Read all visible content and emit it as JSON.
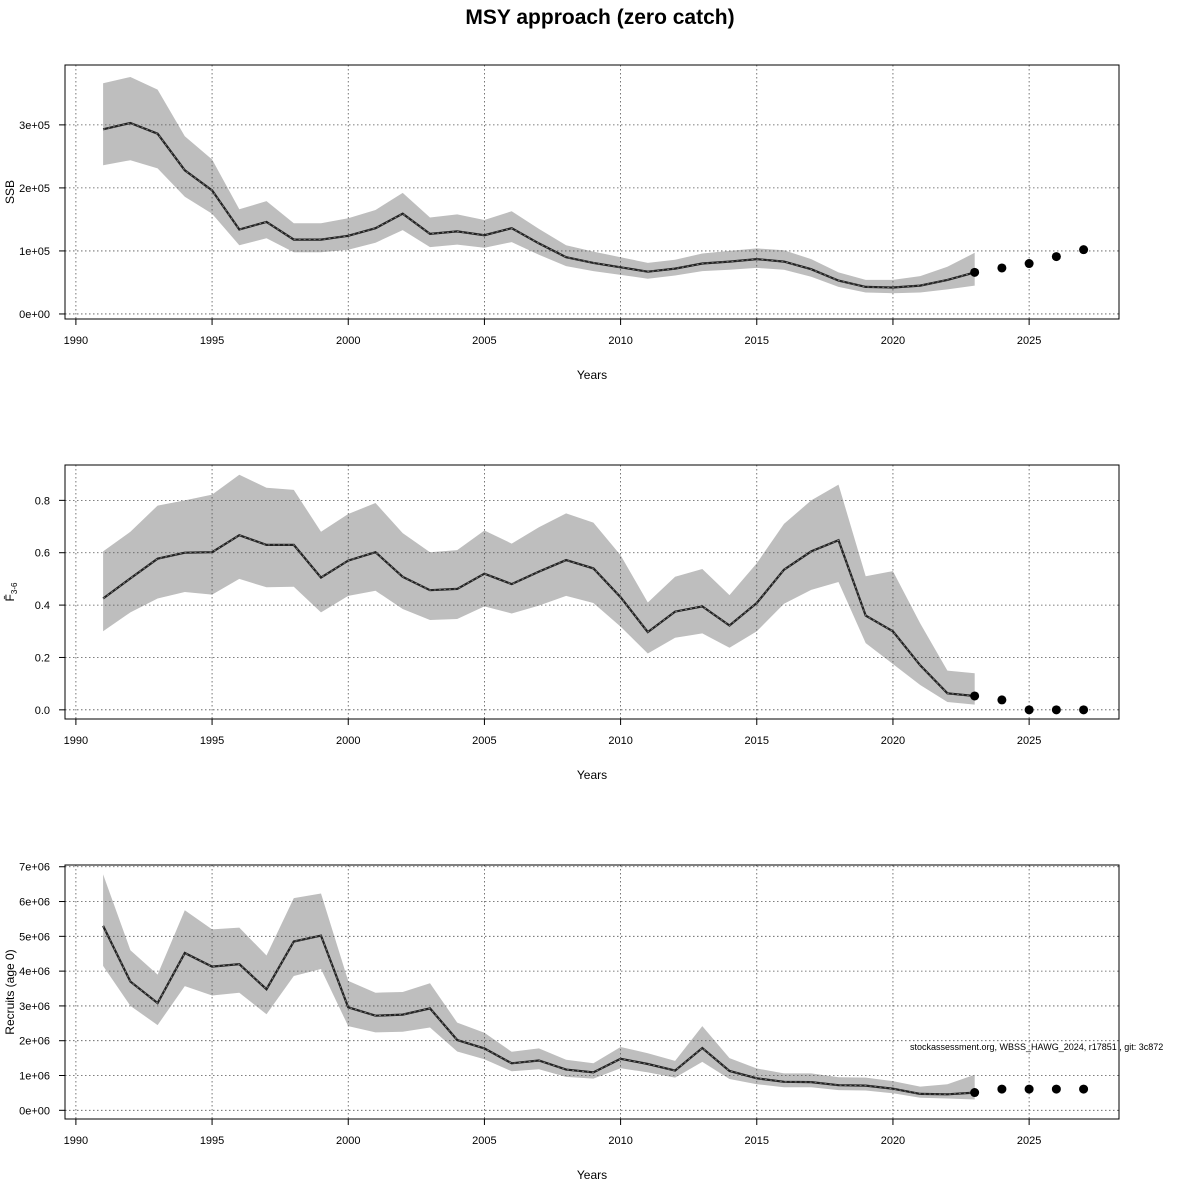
{
  "title": "MSY approach (zero catch)",
  "footer": "stockassessment.org, WBSS_HAWG_2024, r17851 , git: 3c872",
  "colors": {
    "band": "#bebebe",
    "line": "#222222",
    "point": "#000000",
    "grid": "#555555"
  },
  "chart_data": [
    {
      "type": "line",
      "ylabel": "SSB",
      "xlabel": "Years",
      "xlim": [
        1989.6,
        2028.3
      ],
      "ylim": [
        -8000,
        395000
      ],
      "xticks": [
        1990,
        1995,
        2000,
        2005,
        2010,
        2015,
        2020,
        2025
      ],
      "xtick_labels": [
        "1990",
        "1995",
        "2000",
        "2005",
        "2010",
        "2015",
        "2020",
        "2025"
      ],
      "yticks": [
        0,
        100000,
        200000,
        300000
      ],
      "ytick_labels": [
        "0e+00",
        "1e+05",
        "2e+05",
        "3e+05"
      ],
      "grid": true,
      "x": [
        1991,
        1992,
        1993,
        1994,
        1995,
        1996,
        1997,
        1998,
        1999,
        2000,
        2001,
        2002,
        2003,
        2004,
        2005,
        2006,
        2007,
        2008,
        2009,
        2010,
        2011,
        2012,
        2013,
        2014,
        2015,
        2016,
        2017,
        2018,
        2019,
        2020,
        2021,
        2022,
        2023
      ],
      "estimate": [
        293000,
        303000,
        286000,
        228000,
        196000,
        134000,
        146000,
        118000,
        118000,
        124000,
        136000,
        159000,
        127000,
        131000,
        125000,
        136000,
        112000,
        90000,
        81000,
        74000,
        67000,
        72000,
        80000,
        83000,
        87000,
        83000,
        71000,
        53000,
        43000,
        42000,
        45000,
        54000,
        66000
      ],
      "upper": [
        366000,
        376000,
        356000,
        282000,
        245000,
        166000,
        179000,
        144000,
        144000,
        152000,
        165000,
        192000,
        153000,
        158000,
        149000,
        163000,
        135000,
        109000,
        99000,
        90000,
        81000,
        86000,
        96000,
        100000,
        104000,
        101000,
        87000,
        66000,
        54000,
        54000,
        60000,
        75000,
        97000
      ],
      "lower": [
        236000,
        244000,
        231000,
        186000,
        159000,
        109000,
        120000,
        98000,
        98000,
        102000,
        113000,
        133000,
        106000,
        110000,
        105000,
        114000,
        94000,
        76000,
        68000,
        62000,
        56000,
        61000,
        68000,
        70000,
        73000,
        70000,
        59000,
        43000,
        34000,
        33000,
        34000,
        39000,
        45000
      ],
      "forecast_x": [
        2023,
        2024,
        2025,
        2026,
        2027
      ],
      "forecast_values": [
        66000,
        73000,
        80000,
        91000,
        102000
      ]
    },
    {
      "type": "line",
      "ylabel": "F̄ 3-6",
      "xlabel": "Years",
      "xlim": [
        1989.6,
        2028.3
      ],
      "ylim": [
        -0.035,
        0.935
      ],
      "xticks": [
        1990,
        1995,
        2000,
        2005,
        2010,
        2015,
        2020,
        2025
      ],
      "xtick_labels": [
        "1990",
        "1995",
        "2000",
        "2005",
        "2010",
        "2015",
        "2020",
        "2025"
      ],
      "yticks": [
        0,
        0.2,
        0.4,
        0.6,
        0.8
      ],
      "ytick_labels": [
        "0.0",
        "0.2",
        "0.4",
        "0.6",
        "0.8"
      ],
      "grid": true,
      "x": [
        1991,
        1992,
        1993,
        1994,
        1995,
        1996,
        1997,
        1998,
        1999,
        2000,
        2001,
        2002,
        2003,
        2004,
        2005,
        2006,
        2007,
        2008,
        2009,
        2010,
        2011,
        2012,
        2013,
        2014,
        2015,
        2016,
        2017,
        2018,
        2019,
        2020,
        2021,
        2022,
        2023
      ],
      "estimate": [
        0.425,
        0.502,
        0.577,
        0.6,
        0.602,
        0.667,
        0.63,
        0.63,
        0.505,
        0.57,
        0.602,
        0.508,
        0.457,
        0.462,
        0.52,
        0.48,
        0.528,
        0.572,
        0.54,
        0.43,
        0.297,
        0.375,
        0.395,
        0.322,
        0.408,
        0.535,
        0.605,
        0.648,
        0.36,
        0.3,
        0.17,
        0.063,
        0.053
      ],
      "upper": [
        0.605,
        0.68,
        0.78,
        0.8,
        0.822,
        0.898,
        0.848,
        0.84,
        0.68,
        0.748,
        0.79,
        0.675,
        0.602,
        0.61,
        0.685,
        0.635,
        0.697,
        0.75,
        0.715,
        0.59,
        0.41,
        0.508,
        0.538,
        0.438,
        0.56,
        0.71,
        0.8,
        0.86,
        0.51,
        0.53,
        0.33,
        0.15,
        0.14
      ],
      "lower": [
        0.3,
        0.372,
        0.425,
        0.45,
        0.44,
        0.5,
        0.468,
        0.47,
        0.372,
        0.435,
        0.455,
        0.385,
        0.343,
        0.347,
        0.395,
        0.368,
        0.398,
        0.435,
        0.408,
        0.318,
        0.215,
        0.275,
        0.292,
        0.237,
        0.3,
        0.405,
        0.458,
        0.488,
        0.255,
        0.175,
        0.095,
        0.03,
        0.02
      ],
      "forecast_x": [
        2023,
        2024,
        2025,
        2026,
        2027
      ],
      "forecast_values": [
        0.053,
        0.038,
        0.0,
        0.0,
        0.0
      ]
    },
    {
      "type": "line",
      "ylabel": "Recruits (age 0)",
      "xlabel": "Years",
      "xlim": [
        1989.6,
        2028.3
      ],
      "ylim": [
        -250000,
        7050000
      ],
      "xticks": [
        1990,
        1995,
        2000,
        2005,
        2010,
        2015,
        2020,
        2025
      ],
      "xtick_labels": [
        "1990",
        "1995",
        "2000",
        "2005",
        "2010",
        "2015",
        "2020",
        "2025"
      ],
      "yticks": [
        0,
        1000000,
        2000000,
        3000000,
        4000000,
        5000000,
        6000000,
        7000000
      ],
      "ytick_labels": [
        "0e+00",
        "1e+06",
        "2e+06",
        "3e+06",
        "4e+06",
        "5e+06",
        "6e+06",
        "7e+06"
      ],
      "grid": true,
      "x": [
        1991,
        1992,
        1993,
        1994,
        1995,
        1996,
        1997,
        1998,
        1999,
        2000,
        2001,
        2002,
        2003,
        2004,
        2005,
        2006,
        2007,
        2008,
        2009,
        2010,
        2011,
        2012,
        2013,
        2014,
        2015,
        2016,
        2017,
        2018,
        2019,
        2020,
        2021,
        2022,
        2023
      ],
      "estimate": [
        5300000,
        3700000,
        3080000,
        4520000,
        4130000,
        4200000,
        3480000,
        4850000,
        5020000,
        2960000,
        2720000,
        2750000,
        2930000,
        2020000,
        1780000,
        1350000,
        1430000,
        1170000,
        1090000,
        1480000,
        1330000,
        1140000,
        1790000,
        1130000,
        920000,
        820000,
        810000,
        720000,
        710000,
        620000,
        470000,
        460000,
        510000
      ],
      "upper": [
        6780000,
        4600000,
        3900000,
        5750000,
        5200000,
        5250000,
        4450000,
        6100000,
        6230000,
        3720000,
        3380000,
        3400000,
        3650000,
        2520000,
        2230000,
        1680000,
        1780000,
        1450000,
        1350000,
        1820000,
        1640000,
        1420000,
        2420000,
        1500000,
        1200000,
        1060000,
        1060000,
        950000,
        940000,
        840000,
        680000,
        750000,
        1020000
      ],
      "lower": [
        4150000,
        3000000,
        2450000,
        3570000,
        3300000,
        3380000,
        2760000,
        3860000,
        4060000,
        2420000,
        2240000,
        2260000,
        2380000,
        1690000,
        1470000,
        1120000,
        1180000,
        960000,
        910000,
        1210000,
        1090000,
        940000,
        1390000,
        900000,
        750000,
        660000,
        660000,
        580000,
        570000,
        490000,
        360000,
        340000,
        310000
      ],
      "forecast_x": [
        2023,
        2024,
        2025,
        2026,
        2027
      ],
      "forecast_values": [
        510000,
        610000,
        610000,
        610000,
        610000
      ]
    }
  ]
}
